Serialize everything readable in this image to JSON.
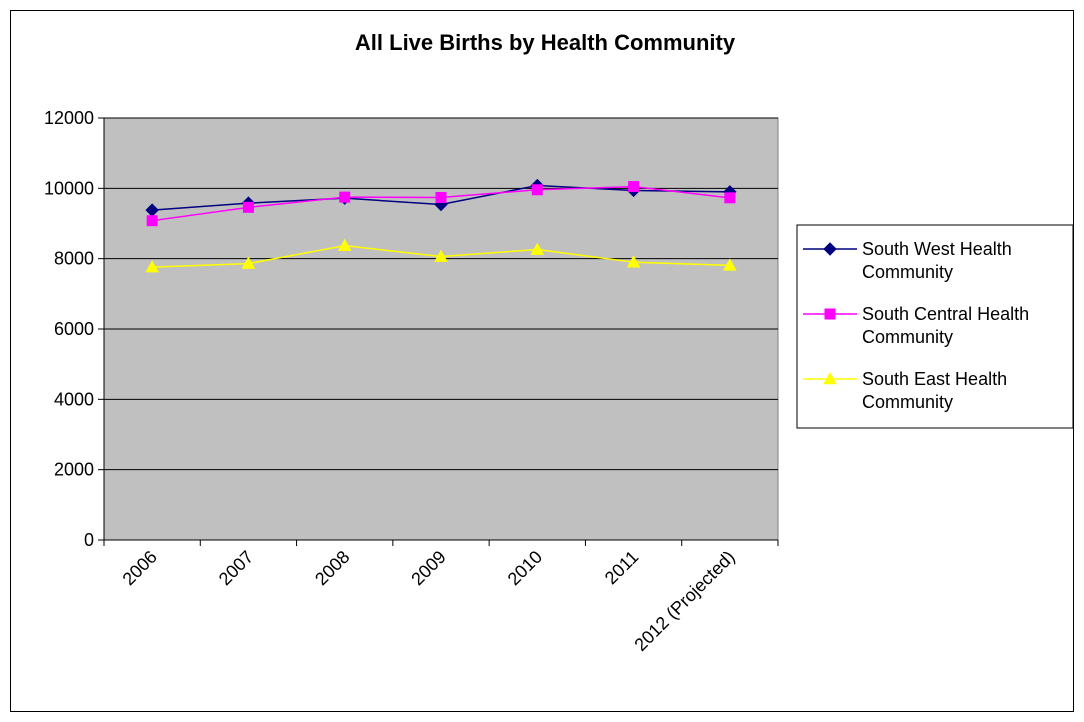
{
  "chart_data": {
    "type": "line",
    "title": "All Live Births by Health Community",
    "xlabel": "",
    "ylabel": "",
    "categories": [
      "2006",
      "2007",
      "2008",
      "2009",
      "2010",
      "2011",
      "2012 (Projected)"
    ],
    "ylim": [
      0,
      12000
    ],
    "yticks": [
      0,
      2000,
      4000,
      6000,
      8000,
      10000,
      12000
    ],
    "grid": true,
    "plot_background": "#c0c0c0",
    "legend": {
      "placement": "right",
      "entries": [
        {
          "line1": "South West Health",
          "line2": "Community"
        },
        {
          "line1": "South Central Health",
          "line2": "Community"
        },
        {
          "line1": "South East Health",
          "line2": "Community"
        }
      ]
    },
    "series": [
      {
        "name": "South West Health Community",
        "color": "#000080",
        "marker": "diamond",
        "values": [
          9380,
          9580,
          9720,
          9540,
          10080,
          9940,
          9900
        ]
      },
      {
        "name": "South Central Health Community",
        "color": "#ff00ff",
        "marker": "square",
        "values": [
          9080,
          9460,
          9750,
          9740,
          9960,
          10050,
          9730
        ]
      },
      {
        "name": "South East Health Community",
        "color": "#ffff00",
        "marker": "triangle",
        "values": [
          7760,
          7860,
          8370,
          8060,
          8260,
          7900,
          7810
        ]
      }
    ]
  }
}
